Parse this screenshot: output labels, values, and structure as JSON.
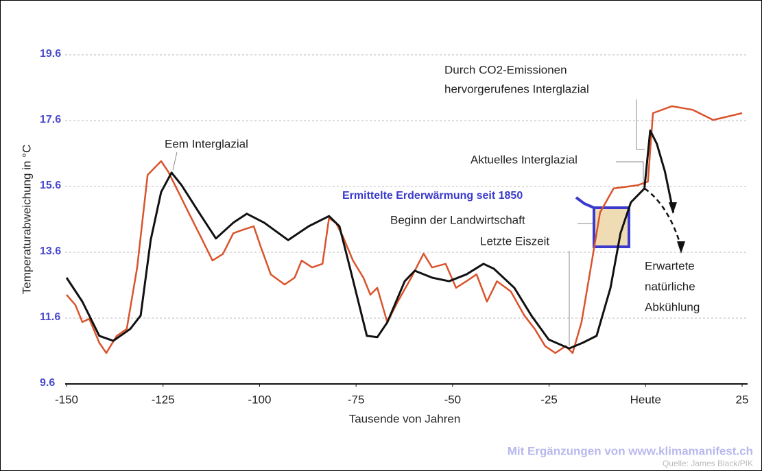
{
  "chart_data": {
    "type": "line",
    "ylabel": "Temperaturabweichung in °C",
    "xlabel": "Tausende von Jahren",
    "xlim": [
      -150,
      25
    ],
    "xticks": [
      -150,
      -125,
      -100,
      -75,
      -50,
      -25,
      {
        "value": 0,
        "label": "Heute"
      },
      25
    ],
    "ylim": [
      9.6,
      19.6
    ],
    "yticks": [
      9.6,
      11.6,
      13.6,
      15.6,
      17.6,
      19.6
    ],
    "grid": true,
    "series": [
      {
        "name": "Black",
        "color": "#111111",
        "x": [
          -150,
          -145.9,
          -141.5,
          -137.9,
          -133.5,
          -130.8,
          -128.2,
          -125.5,
          -122.8,
          -120.2,
          -115.7,
          -111.3,
          -106.8,
          -103.3,
          -98.8,
          -92.6,
          -87.3,
          -82,
          -79.3,
          -76.6,
          -72.2,
          -69.5,
          -66.9,
          -62.4,
          -59.8,
          -55.3,
          -50.9,
          -46.4,
          -42,
          -39.3,
          -34,
          -29.6,
          -25.1,
          -19.8,
          -16.3,
          -12.7,
          -9.1,
          -6.5,
          -3.8,
          -0.3,
          1.2,
          2.9,
          5.0,
          7.2
        ],
        "values": [
          12.83,
          12.1,
          11.06,
          10.91,
          11.27,
          11.68,
          13.97,
          15.43,
          16.02,
          15.64,
          14.81,
          14.02,
          14.5,
          14.77,
          14.5,
          13.97,
          14.39,
          14.7,
          14.39,
          13.14,
          11.06,
          11.02,
          11.47,
          12.72,
          13.04,
          12.83,
          12.72,
          12.93,
          13.25,
          13.1,
          12.52,
          11.68,
          10.95,
          10.68,
          10.85,
          11.06,
          12.52,
          14.18,
          15.12,
          15.54,
          17.3,
          16.9,
          16.06,
          14.81
        ]
      },
      {
        "name": "Red",
        "color": "#d9532b",
        "x": [
          -150,
          -147.7,
          -145.9,
          -144.1,
          -141.5,
          -139.7,
          -137,
          -134.4,
          -131.7,
          -129,
          -125.5,
          -123.7,
          -121.0,
          -118.4,
          -114.8,
          -112.2,
          -109.5,
          -106.8,
          -104.2,
          -101.5,
          -99.7,
          -97.1,
          -93.5,
          -90.9,
          -89.1,
          -86.4,
          -83.7,
          -82,
          -80.2,
          -78.4,
          -75.8,
          -73.1,
          -71.3,
          -69.5,
          -66.9,
          -64.2,
          -60.7,
          -57.5,
          -55.3,
          -51.8,
          -49.1,
          -46.4,
          -43.8,
          -41.1,
          -38.5,
          -34.9,
          -31.4,
          -28.7,
          -26,
          -23.4,
          -20.7,
          -18.9,
          -16.6,
          -14.5,
          -11.8,
          -8.3,
          -2.0,
          0.6,
          1.9,
          6.8,
          12.2,
          17.5,
          25
        ],
        "values": [
          12.31,
          12.0,
          11.48,
          11.58,
          10.85,
          10.54,
          11.06,
          11.27,
          13.14,
          15.95,
          16.37,
          16.06,
          15.43,
          14.81,
          13.97,
          13.35,
          13.55,
          14.18,
          14.29,
          14.39,
          13.77,
          12.93,
          12.62,
          12.83,
          13.35,
          13.14,
          13.25,
          14.64,
          14.49,
          14.08,
          13.35,
          12.83,
          12.31,
          12.52,
          11.47,
          12.1,
          12.83,
          13.56,
          13.14,
          13.25,
          12.52,
          12.72,
          12.93,
          12.1,
          12.72,
          12.41,
          11.68,
          11.27,
          10.75,
          10.54,
          10.75,
          10.54,
          11.48,
          12.93,
          14.81,
          15.54,
          15.64,
          15.75,
          17.83,
          18.04,
          17.93,
          17.62,
          17.83
        ]
      }
    ],
    "annotations": {
      "eem": "Eem Interglazial",
      "co2": [
        "Durch CO2-Emissionen",
        "hervorgerufenes Interglazial"
      ],
      "aktuell": "Aktuelles Interglazial",
      "erwaermung": "Ermittelte Erderwärmung seit 1850",
      "landwirtschaft": "Beginn der Landwirtschaft",
      "eiszeit": "Letzte Eiszeit",
      "abkuehlung": [
        "Erwartete",
        "natürliche",
        "Abkühlung"
      ]
    },
    "credit": "Mit Ergänzungen von www.klimamanifest.ch",
    "source": "Quelle: James Black/PIK"
  }
}
